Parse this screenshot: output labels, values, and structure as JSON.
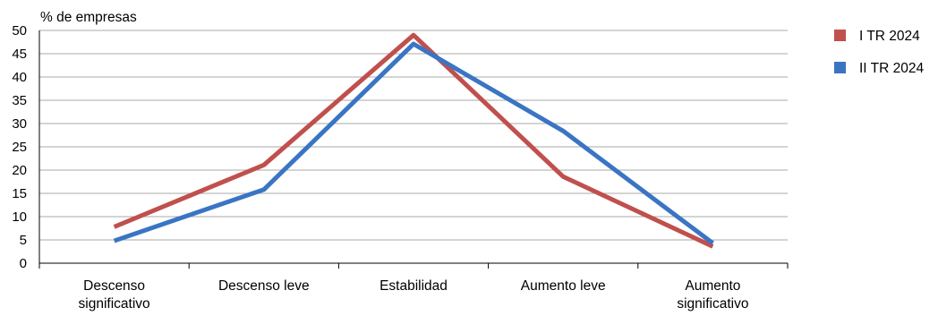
{
  "chart_data": {
    "type": "line",
    "ylabel": "% de empresas",
    "ylim": [
      0,
      50
    ],
    "yticks": [
      "0",
      "5",
      "10",
      "15",
      "20",
      "25",
      "30",
      "35",
      "40",
      "45",
      "50"
    ],
    "categories": [
      [
        "Descenso",
        "significativo"
      ],
      [
        "Descenso leve"
      ],
      [
        "Estabilidad"
      ],
      [
        "Aumento leve"
      ],
      [
        "Aumento",
        "significativo"
      ]
    ],
    "grid": true,
    "legend_position": "right",
    "series": [
      {
        "name": "I TR 2024",
        "color": "#c0504d",
        "values": [
          7.8,
          21.1,
          49.0,
          18.6,
          3.6
        ]
      },
      {
        "name": "II TR 2024",
        "color": "#3a75c4",
        "values": [
          4.8,
          15.8,
          47.1,
          28.4,
          4.3
        ]
      }
    ]
  }
}
